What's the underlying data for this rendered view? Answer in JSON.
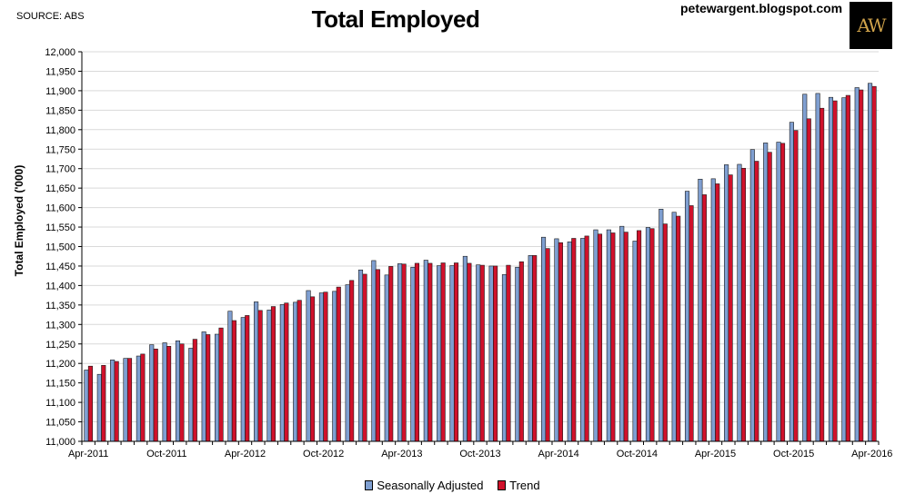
{
  "header": {
    "source": "SOURCE: ABS",
    "blog": "petewargent.blogspot.com",
    "logo_text": "AW"
  },
  "chart_data": {
    "type": "bar",
    "title": "Total Employed",
    "ylabel": "Total Employed ('000)",
    "xlabel": "",
    "ylim": [
      11000,
      12000
    ],
    "ytick_step": 50,
    "grid": true,
    "legend_position": "bottom",
    "colors": {
      "Seasonally Adjusted": "#7f9fd1",
      "Trend": "#d0112b"
    },
    "categories": [
      "Apr-2011",
      "May-2011",
      "Jun-2011",
      "Jul-2011",
      "Aug-2011",
      "Sep-2011",
      "Oct-2011",
      "Nov-2011",
      "Dec-2011",
      "Jan-2012",
      "Feb-2012",
      "Mar-2012",
      "Apr-2012",
      "May-2012",
      "Jun-2012",
      "Jul-2012",
      "Aug-2012",
      "Sep-2012",
      "Oct-2012",
      "Nov-2012",
      "Dec-2012",
      "Jan-2013",
      "Feb-2013",
      "Mar-2013",
      "Apr-2013",
      "May-2013",
      "Jun-2013",
      "Jul-2013",
      "Aug-2013",
      "Sep-2013",
      "Oct-2013",
      "Nov-2013",
      "Dec-2013",
      "Jan-2014",
      "Feb-2014",
      "Mar-2014",
      "Apr-2014",
      "May-2014",
      "Jun-2014",
      "Jul-2014",
      "Aug-2014",
      "Sep-2014",
      "Oct-2014",
      "Nov-2014",
      "Dec-2014",
      "Jan-2015",
      "Feb-2015",
      "Mar-2015",
      "Apr-2015",
      "May-2015",
      "Jun-2015",
      "Jul-2015",
      "Aug-2015",
      "Sep-2015",
      "Oct-2015",
      "Nov-2015",
      "Dec-2015",
      "Jan-2016",
      "Feb-2016",
      "Mar-2016",
      "Apr-2016"
    ],
    "xtick_labels": [
      "Apr-2011",
      "Oct-2011",
      "Apr-2012",
      "Oct-2012",
      "Apr-2013",
      "Oct-2013",
      "Apr-2014",
      "Oct-2014",
      "Apr-2015",
      "Oct-2015",
      "Apr-2016"
    ],
    "series": [
      {
        "name": "Seasonally Adjusted",
        "values": [
          11183,
          11172,
          11209,
          11213,
          11219,
          11248,
          11253,
          11258,
          11239,
          11281,
          11275,
          11334,
          11318,
          11358,
          11337,
          11351,
          11357,
          11387,
          11381,
          11385,
          11402,
          11440,
          11464,
          11427,
          11456,
          11447,
          11465,
          11451,
          11451,
          11475,
          11453,
          11450,
          11428,
          11447,
          11477,
          11524,
          11520,
          11512,
          11521,
          11543,
          11543,
          11552,
          11514,
          11549,
          11596,
          11588,
          11642,
          11673,
          11674,
          11710,
          11711,
          11749,
          11766,
          11768,
          11819,
          11891,
          11893,
          11883,
          11882,
          11908,
          11919
        ]
      },
      {
        "name": "Trend",
        "values": [
          11193,
          11195,
          11205,
          11213,
          11224,
          11237,
          11244,
          11250,
          11262,
          11274,
          11291,
          11310,
          11323,
          11336,
          11346,
          11355,
          11362,
          11371,
          11383,
          11396,
          11413,
          11429,
          11441,
          11449,
          11455,
          11457,
          11457,
          11458,
          11458,
          11457,
          11452,
          11450,
          11452,
          11461,
          11477,
          11495,
          11510,
          11521,
          11527,
          11532,
          11535,
          11537,
          11541,
          11546,
          11558,
          11578,
          11605,
          11633,
          11661,
          11684,
          11701,
          11719,
          11742,
          11765,
          11798,
          11828,
          11855,
          11874,
          11888,
          11902,
          11911
        ]
      }
    ]
  }
}
